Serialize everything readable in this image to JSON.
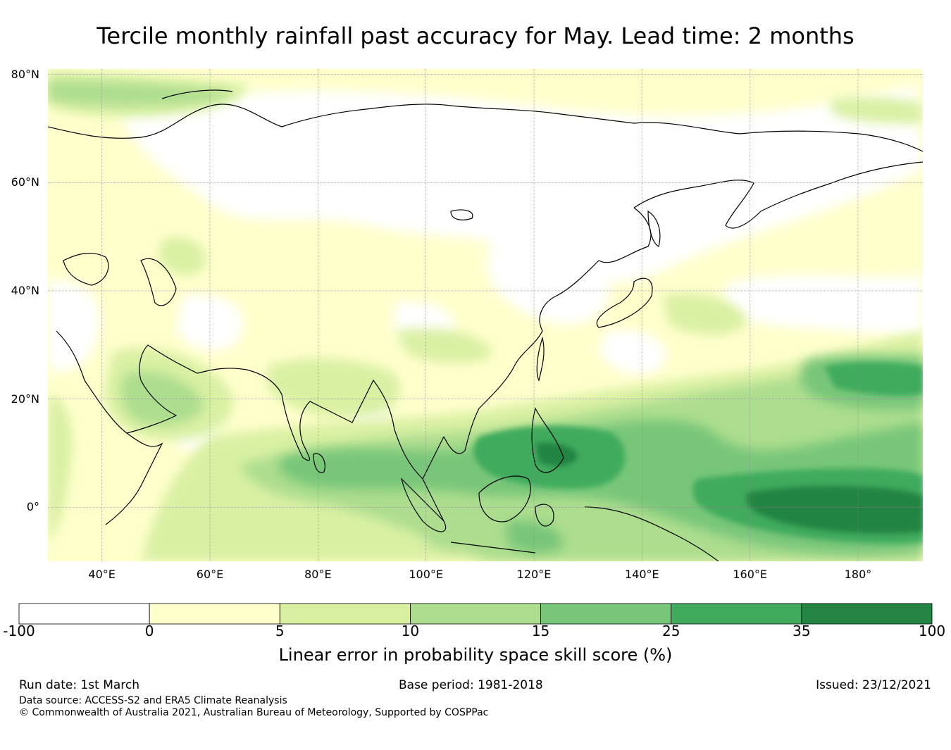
{
  "title": "Tercile monthly rainfall past accuracy for May. Lead time: 2 months",
  "map": {
    "lon_range": [
      30,
      192
    ],
    "lat_range": [
      -10,
      81
    ],
    "lat_ticks": [
      {
        "value": 80,
        "label": "80°N"
      },
      {
        "value": 60,
        "label": "60°N"
      },
      {
        "value": 40,
        "label": "40°N"
      },
      {
        "value": 20,
        "label": "20°N"
      },
      {
        "value": 0,
        "label": "0°"
      }
    ],
    "lon_ticks": [
      {
        "value": 40,
        "label": "40°E"
      },
      {
        "value": 60,
        "label": "60°E"
      },
      {
        "value": 80,
        "label": "80°E"
      },
      {
        "value": 100,
        "label": "100°E"
      },
      {
        "value": 120,
        "label": "120°E"
      },
      {
        "value": 140,
        "label": "140°E"
      },
      {
        "value": 160,
        "label": "160°E"
      },
      {
        "value": 180,
        "label": "180°"
      }
    ]
  },
  "colorbar": {
    "bounds": [
      "-100",
      "0",
      "5",
      "10",
      "15",
      "25",
      "35",
      "100"
    ],
    "colors": [
      "#ffffff",
      "#ffffcc",
      "#d9f0a3",
      "#addd8e",
      "#78c679",
      "#41ab5d",
      "#238443"
    ],
    "title": "Linear error in probability space skill score (%)"
  },
  "footer": {
    "run_date": "Run date: 1st March",
    "base_period": "Base period: 1981-2018",
    "issued": "Issued: 23/12/2021",
    "data_source": "Data source: ACCESS-S2 and ERA5 Climate Reanalysis",
    "copyright": "© Commonwealth of Australia 2021, Australian Bureau of Meteorology, Supported by COSPPac"
  }
}
